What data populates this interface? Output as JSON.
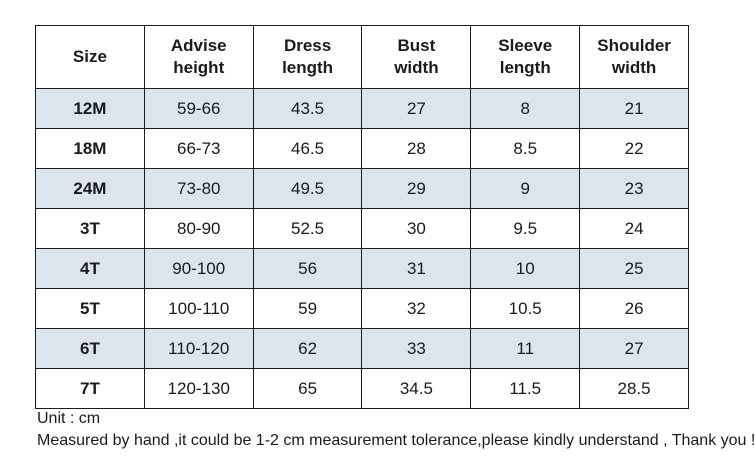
{
  "chart_data": {
    "type": "table",
    "columns": [
      "Size",
      "Advise height",
      "Dress length",
      "Bust width",
      "Sleeve length",
      "Shoulder width"
    ],
    "rows": [
      [
        "12M",
        "59-66",
        "43.5",
        "27",
        "8",
        "21"
      ],
      [
        "18M",
        "66-73",
        "46.5",
        "28",
        "8.5",
        "22"
      ],
      [
        "24M",
        "73-80",
        "49.5",
        "29",
        "9",
        "23"
      ],
      [
        "3T",
        "80-90",
        "52.5",
        "30",
        "9.5",
        "24"
      ],
      [
        "4T",
        "90-100",
        "56",
        "31",
        "10",
        "25"
      ],
      [
        "5T",
        "100-110",
        "59",
        "32",
        "10.5",
        "26"
      ],
      [
        "6T",
        "110-120",
        "62",
        "33",
        "11",
        "27"
      ],
      [
        "7T",
        "120-130",
        "65",
        "34.5",
        "11.5",
        "28.5"
      ]
    ]
  },
  "notes": {
    "unit": "Unit : cm",
    "tolerance": "Measured by hand ,it could be 1-2 cm measurement tolerance,please kindly understand , Thank you !"
  },
  "colors": {
    "stripe": "#dce4ee",
    "border": "#1b1b1b",
    "text": "#1b1b1b",
    "background": "#ffffff"
  }
}
